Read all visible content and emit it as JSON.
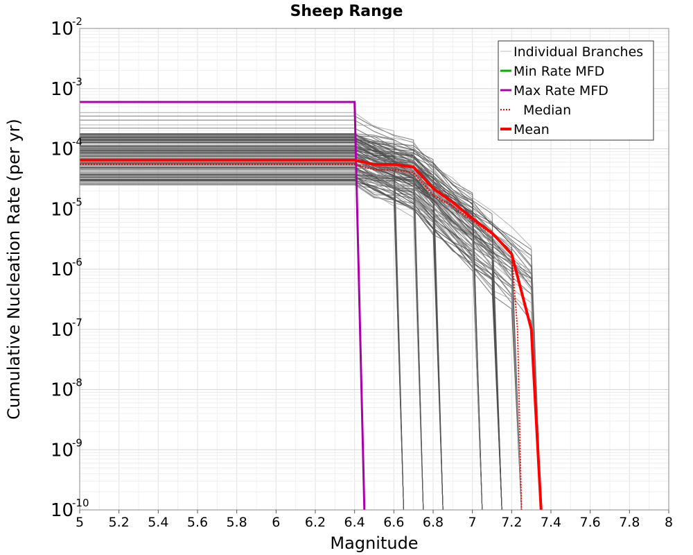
{
  "chart_data": {
    "type": "line",
    "title": "Sheep Range",
    "xlabel": "Magnitude",
    "ylabel": "Cumulative Nucleation Rate (per yr)",
    "x_scale": "linear",
    "y_scale": "log",
    "xlim": [
      5,
      8
    ],
    "ylim": [
      1e-10,
      0.01
    ],
    "grid": true,
    "legend_position": "top-right",
    "x_ticks": [
      "5",
      "5.2",
      "5.4",
      "5.6",
      "5.8",
      "6",
      "6.2",
      "6.4",
      "6.6",
      "6.8",
      "7",
      "7.2",
      "7.4",
      "7.6",
      "7.8",
      "8"
    ],
    "y_ticks": [
      {
        "base": "10",
        "exp": "-10",
        "value": 1e-10
      },
      {
        "base": "10",
        "exp": "-9",
        "value": 1e-09
      },
      {
        "base": "10",
        "exp": "-8",
        "value": 1e-08
      },
      {
        "base": "10",
        "exp": "-7",
        "value": 1e-07
      },
      {
        "base": "10",
        "exp": "-6",
        "value": 1e-06
      },
      {
        "base": "10",
        "exp": "-5",
        "value": 1e-05
      },
      {
        "base": "10",
        "exp": "-4",
        "value": 0.0001
      },
      {
        "base": "10",
        "exp": "-3",
        "value": 0.001
      },
      {
        "base": "10",
        "exp": "-2",
        "value": 0.01
      }
    ],
    "legend": [
      {
        "label": "Individual Branches",
        "color": "#bbbbbb",
        "style": "thin"
      },
      {
        "label": "Min Rate MFD",
        "color": "#00b000",
        "style": "solid"
      },
      {
        "label": "Max Rate MFD",
        "color": "#aa00aa",
        "style": "solid"
      },
      {
        "label": "Median",
        "color": "#ff0000",
        "style": "dotted"
      },
      {
        "label": "Mean",
        "color": "#ff0000",
        "style": "thick"
      }
    ],
    "series": [
      {
        "name": "Max Rate MFD",
        "color": "#aa00aa",
        "x": [
          5.0,
          6.4,
          6.45
        ],
        "y": [
          0.0006,
          0.0006,
          1e-10
        ]
      },
      {
        "name": "Median",
        "color": "#ff0000",
        "x": [
          5.0,
          6.4,
          6.5,
          6.6,
          6.7,
          6.8,
          6.9,
          7.0,
          7.1,
          7.2,
          7.23,
          7.25
        ],
        "y": [
          5.5e-05,
          5.5e-05,
          4.5e-05,
          4.5e-05,
          4e-05,
          1.7e-05,
          1.1e-05,
          6.5e-06,
          3.8e-06,
          1.8e-06,
          1e-07,
          1e-10
        ]
      },
      {
        "name": "Mean",
        "color": "#ff0000",
        "x": [
          5.0,
          6.4,
          6.5,
          6.6,
          6.7,
          6.8,
          6.9,
          7.0,
          7.1,
          7.2,
          7.3,
          7.35
        ],
        "y": [
          6.5e-05,
          6.5e-05,
          5.5e-05,
          5.5e-05,
          5e-05,
          2.2e-05,
          1.3e-05,
          7e-06,
          4e-06,
          1.8e-06,
          1e-07,
          1e-10
        ]
      }
    ],
    "branch_summary": {
      "color": "#4d4d4d",
      "count": 150,
      "plateau_range": [
        2.5e-05,
        0.00018
      ],
      "outlier_plateaus": [
        0.0004,
        0.00035,
        0.0003,
        0.00025,
        0.00022
      ],
      "knee_magnitude": 6.4,
      "cutoff_magnitudes": [
        6.65,
        6.75,
        6.85,
        7.05,
        7.15,
        7.25,
        7.35
      ]
    }
  }
}
